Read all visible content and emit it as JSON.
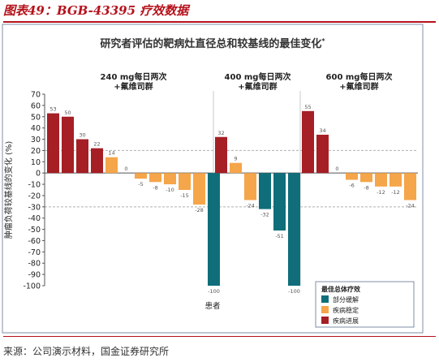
{
  "figure_title": "图表49：BGB-43395 疗效数据",
  "source": "来源：公司演示材料，国金证券研究所",
  "chart_data": {
    "type": "bar",
    "title": "研究者评估的靶病灶直径总和较基线的最佳变化",
    "title_mark": "*",
    "ylabel": "肿瘤负荷较基线的变化 (%)",
    "xlabel": "患者",
    "ylim": [
      -100,
      70
    ],
    "yticks": [
      70,
      60,
      50,
      40,
      30,
      20,
      10,
      0,
      -10,
      -20,
      -30,
      -40,
      -50,
      -60,
      -70,
      -80,
      -90,
      -100
    ],
    "reference_lines": [
      20,
      -30
    ],
    "colors": {
      "partial_response": "#0f6e7a",
      "stable_disease": "#f5a54a",
      "progressive_disease": "#a51f25"
    },
    "legend": {
      "title": "最佳总体疗效",
      "placement": "bottom-right",
      "items": [
        {
          "key": "partial_response",
          "label": "部分缓解"
        },
        {
          "key": "stable_disease",
          "label": "疾病稳定"
        },
        {
          "key": "progressive_disease",
          "label": "疾病进展"
        }
      ]
    },
    "groups": [
      {
        "dose": "240 mg每日两次",
        "combo": "+氟维司群",
        "bars": [
          {
            "value": 53,
            "response": "progressive_disease",
            "label": "53"
          },
          {
            "value": 50,
            "response": "progressive_disease",
            "label": "50"
          },
          {
            "value": 30,
            "response": "progressive_disease",
            "label": "30"
          },
          {
            "value": 22,
            "response": "progressive_disease",
            "label": "22"
          },
          {
            "value": 14,
            "response": "stable_disease",
            "label": "14"
          },
          {
            "value": 0,
            "response": "stable_disease",
            "label": "0"
          },
          {
            "value": -5,
            "response": "stable_disease",
            "label": "-5"
          },
          {
            "value": -8,
            "response": "stable_disease",
            "label": "-8"
          },
          {
            "value": -10,
            "response": "stable_disease",
            "label": "-10"
          },
          {
            "value": -15,
            "response": "stable_disease",
            "label": "-15"
          },
          {
            "value": -28,
            "response": "stable_disease",
            "label": "-28"
          },
          {
            "value": -100,
            "response": "partial_response",
            "label": "-100"
          }
        ]
      },
      {
        "dose": "400 mg每日两次",
        "combo": "+氟维司群",
        "bars": [
          {
            "value": 32,
            "response": "progressive_disease",
            "label": "32"
          },
          {
            "value": 9,
            "response": "stable_disease",
            "label": "9"
          },
          {
            "value": -24,
            "response": "stable_disease",
            "label": "-24"
          },
          {
            "value": -32,
            "response": "partial_response",
            "label": "-32"
          },
          {
            "value": -51,
            "response": "partial_response",
            "label": "-51"
          },
          {
            "value": -100,
            "response": "partial_response",
            "label": "-100"
          }
        ]
      },
      {
        "dose": "600 mg每日两次",
        "combo": "+氟维司群",
        "bars": [
          {
            "value": 55,
            "response": "progressive_disease",
            "label": "55"
          },
          {
            "value": 34,
            "response": "progressive_disease",
            "label": "34"
          },
          {
            "value": 0,
            "response": "stable_disease",
            "label": "0"
          },
          {
            "value": -6,
            "response": "stable_disease",
            "label": "-6"
          },
          {
            "value": -8,
            "response": "stable_disease",
            "label": "-8"
          },
          {
            "value": -12,
            "response": "stable_disease",
            "label": "-12"
          },
          {
            "value": -12,
            "response": "stable_disease",
            "label": "-12"
          },
          {
            "value": -24,
            "response": "stable_disease",
            "label": "-24"
          }
        ]
      }
    ]
  }
}
